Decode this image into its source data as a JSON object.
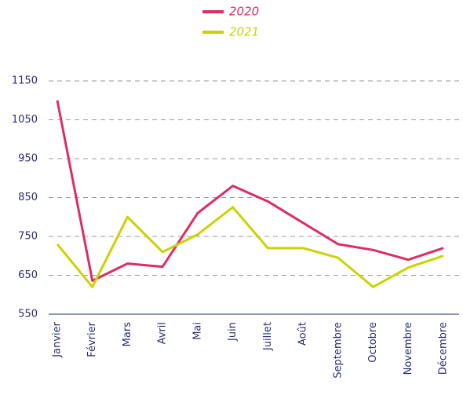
{
  "chart_data": {
    "type": "line",
    "categories": [
      "Janvier",
      "Février",
      "Mars",
      "Avril",
      "Mai",
      "Juin",
      "Juillet",
      "Août",
      "Septembre",
      "Octobre",
      "Novembre",
      "Décembre"
    ],
    "series": [
      {
        "name": "2020",
        "color": "#dc2d64",
        "values": [
          1100,
          636,
          680,
          672,
          810,
          880,
          840,
          785,
          730,
          715,
          690,
          720
        ]
      },
      {
        "name": "2021",
        "color": "#c8d400",
        "values": [
          730,
          620,
          800,
          710,
          755,
          825,
          720,
          720,
          695,
          620,
          670,
          700
        ]
      }
    ],
    "ylim": [
      550,
      1150
    ],
    "yticks": [
      550,
      650,
      750,
      850,
      950,
      1050,
      1150
    ],
    "grid": true
  }
}
